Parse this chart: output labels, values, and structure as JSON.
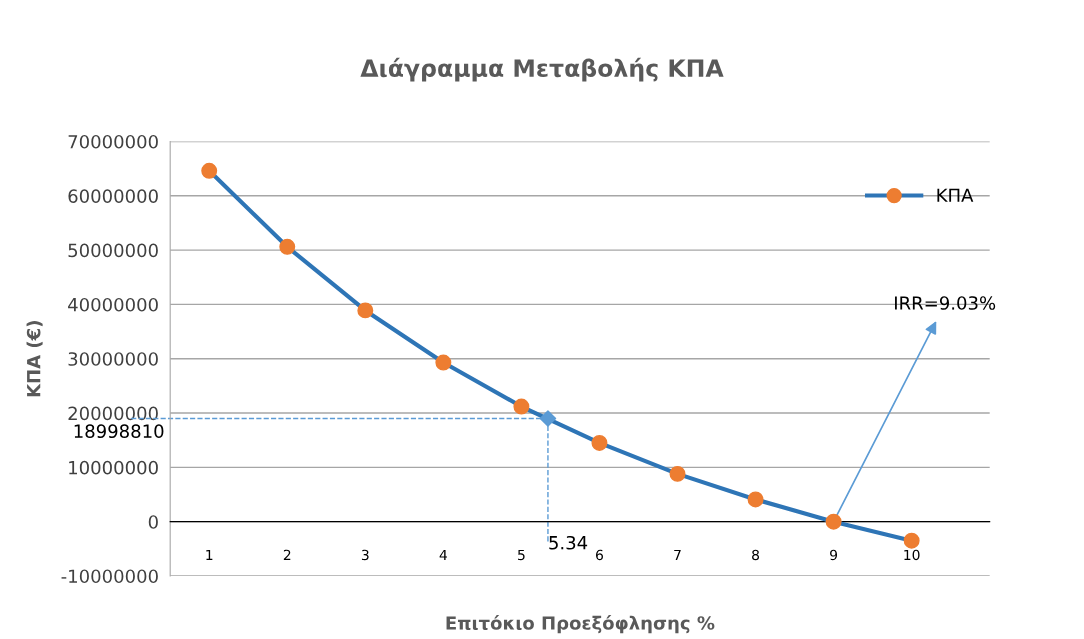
{
  "chart_data": {
    "type": "line",
    "title": "Διάγραμμα Μεταβολής ΚΠΑ",
    "xlabel": "Επιτόκιο Προεξόφλησης %",
    "ylabel": "ΚΠΑ (€)",
    "x": [
      1,
      2,
      3,
      4,
      5,
      6,
      7,
      8,
      9,
      10
    ],
    "xlim": [
      0.5,
      11
    ],
    "xticks": [
      1,
      2,
      3,
      4,
      5,
      6,
      7,
      8,
      9,
      10
    ],
    "ylim": [
      -10000000,
      70000000
    ],
    "yticks": [
      -10000000,
      0,
      10000000,
      20000000,
      30000000,
      40000000,
      50000000,
      60000000,
      70000000
    ],
    "series": [
      {
        "name": "ΚΠΑ",
        "color": "#2e75b6",
        "marker": "circle",
        "colors": [
          "#ed7d31",
          "#ed7d31",
          "#ed7d31",
          "#ed7d31",
          "#ed7d31",
          "#ed7d31",
          "#ed7d31",
          "#ed7d31",
          "#ed7d31",
          "#ed7d31"
        ],
        "values": [
          64600000,
          50600000,
          38900000,
          29300000,
          21200000,
          14500000,
          8800000,
          4100000,
          0,
          -3500000
        ]
      },
      {
        "type": "scatter",
        "x": [
          5.34
        ],
        "color": "#5b9bd5",
        "marker": "diamond",
        "values": [
          18998810
        ]
      }
    ],
    "ref_lines": [
      {
        "axis": "y",
        "value": 18998810,
        "label": "18998810",
        "color": "#5b9bd5",
        "line_style": "dashed"
      },
      {
        "axis": "x",
        "value": 5.34,
        "label": "5.34",
        "color": "#5b9bd5",
        "line_style": "dashed"
      }
    ],
    "annotations": [
      {
        "text": "IRR=9.03%",
        "x": 9,
        "y": 0
      }
    ],
    "grid": "y",
    "legend": "top right"
  }
}
